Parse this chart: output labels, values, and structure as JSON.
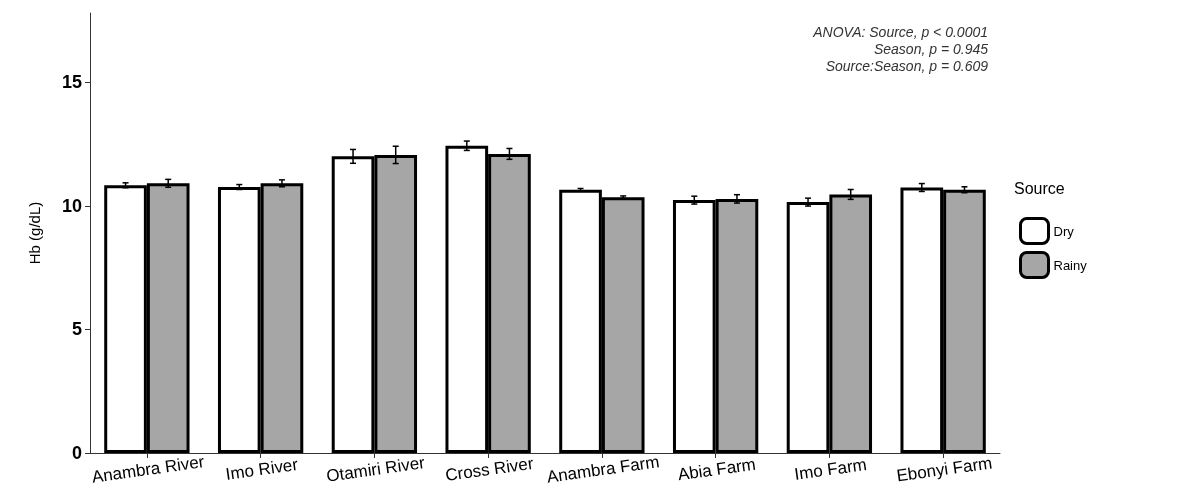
{
  "chart_data": {
    "type": "bar",
    "ylabel": "Hb (g/dL)",
    "legend_title": "Source",
    "categories": [
      "Anambra River",
      "Imo River",
      "Otamiri River",
      "Cross River",
      "Anambra Farm",
      "Abia Farm",
      "Imo Farm",
      "Ebonyi Farm"
    ],
    "series": [
      {
        "name": "Dry",
        "color": "#ffffff",
        "values": [
          10.83,
          10.76,
          12.0,
          12.43,
          10.65,
          10.23,
          10.15,
          10.74
        ],
        "errors": [
          0.1,
          0.1,
          0.28,
          0.19,
          0.05,
          0.16,
          0.16,
          0.16
        ]
      },
      {
        "name": "Rainy",
        "color": "#a6a6a6",
        "values": [
          10.91,
          10.91,
          12.06,
          12.1,
          10.35,
          10.28,
          10.46,
          10.65
        ],
        "errors": [
          0.16,
          0.14,
          0.35,
          0.22,
          0.05,
          0.17,
          0.2,
          0.12
        ]
      }
    ],
    "ylim": [
      0,
      17.8
    ],
    "yticks": [
      0,
      5,
      10,
      15
    ],
    "grid": false,
    "legend": "right",
    "annotations": [
      "ANOVA: Source, p < 0.0001\nSeason, p = 0.945\nSource:Season, p = 0.609"
    ]
  }
}
